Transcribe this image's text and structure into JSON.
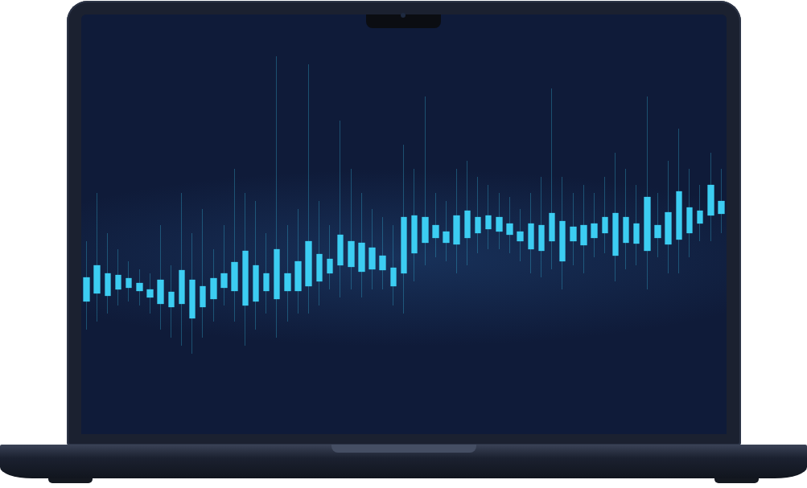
{
  "chart_data": {
    "type": "candlestick",
    "categories": [
      null,
      null,
      null,
      null,
      null,
      null,
      null,
      null,
      null,
      null,
      null,
      null,
      null,
      null,
      null,
      null,
      null,
      null,
      null,
      null,
      null,
      null,
      null,
      null,
      null,
      null,
      null,
      null,
      null,
      null,
      null,
      null,
      null,
      null,
      null,
      null,
      null,
      null,
      null,
      null,
      null,
      null,
      null,
      null,
      null,
      null,
      null,
      null,
      null,
      null,
      null,
      null,
      null,
      null,
      null,
      null,
      null,
      null,
      null,
      null,
      null
    ],
    "values": [
      [
        165,
        195,
        130,
        240
      ],
      [
        175,
        210,
        140,
        300
      ],
      [
        172,
        200,
        150,
        250
      ],
      [
        180,
        198,
        160,
        230
      ],
      [
        182,
        194,
        165,
        215
      ],
      [
        178,
        188,
        160,
        205
      ],
      [
        170,
        180,
        150,
        200
      ],
      [
        162,
        192,
        130,
        260
      ],
      [
        158,
        177,
        120,
        210
      ],
      [
        162,
        204,
        110,
        300
      ],
      [
        144,
        192,
        100,
        250
      ],
      [
        158,
        184,
        120,
        280
      ],
      [
        168,
        194,
        140,
        230
      ],
      [
        182,
        200,
        160,
        260
      ],
      [
        178,
        214,
        140,
        330
      ],
      [
        160,
        228,
        110,
        300
      ],
      [
        165,
        210,
        130,
        290
      ],
      [
        178,
        200,
        150,
        250
      ],
      [
        168,
        230,
        120,
        470
      ],
      [
        178,
        200,
        140,
        260
      ],
      [
        178,
        215,
        150,
        280
      ],
      [
        184,
        240,
        150,
        460
      ],
      [
        190,
        224,
        160,
        290
      ],
      [
        200,
        218,
        180,
        260
      ],
      [
        210,
        248,
        170,
        390
      ],
      [
        208,
        240,
        180,
        330
      ],
      [
        202,
        238,
        170,
        300
      ],
      [
        205,
        232,
        180,
        280
      ],
      [
        204,
        222,
        180,
        270
      ],
      [
        184,
        207,
        160,
        260
      ],
      [
        200,
        270,
        150,
        360
      ],
      [
        225,
        272,
        190,
        330
      ],
      [
        238,
        270,
        210,
        420
      ],
      [
        244,
        260,
        220,
        300
      ],
      [
        238,
        252,
        215,
        290
      ],
      [
        236,
        272,
        200,
        330
      ],
      [
        244,
        278,
        210,
        340
      ],
      [
        250,
        270,
        225,
        320
      ],
      [
        255,
        272,
        230,
        310
      ],
      [
        252,
        270,
        230,
        300
      ],
      [
        248,
        262,
        225,
        295
      ],
      [
        240,
        252,
        215,
        280
      ],
      [
        230,
        262,
        200,
        300
      ],
      [
        228,
        260,
        195,
        320
      ],
      [
        240,
        275,
        205,
        430
      ],
      [
        215,
        265,
        180,
        320
      ],
      [
        240,
        258,
        210,
        300
      ],
      [
        235,
        260,
        200,
        310
      ],
      [
        244,
        262,
        220,
        300
      ],
      [
        250,
        270,
        225,
        320
      ],
      [
        222,
        275,
        190,
        350
      ],
      [
        238,
        270,
        205,
        330
      ],
      [
        237,
        262,
        210,
        310
      ],
      [
        228,
        295,
        180,
        420
      ],
      [
        244,
        260,
        220,
        300
      ],
      [
        236,
        276,
        200,
        340
      ],
      [
        242,
        302,
        200,
        380
      ],
      [
        250,
        282,
        220,
        330
      ],
      [
        262,
        278,
        240,
        310
      ],
      [
        272,
        310,
        240,
        350
      ],
      [
        274,
        290,
        250,
        330
      ]
    ],
    "color": "#3ccdf2",
    "ylim": [
      0,
      522
    ],
    "tick_labels": false,
    "grid": false
  }
}
